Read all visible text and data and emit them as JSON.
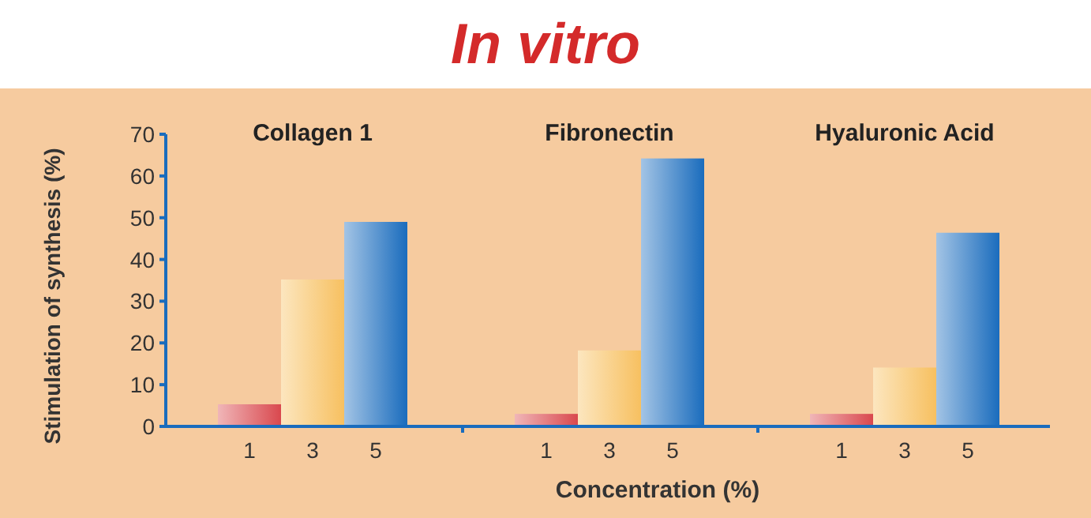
{
  "chart_data": [
    {
      "type": "bar",
      "title": "Collagen 1",
      "annotations": [
        "In vitro"
      ],
      "ylabel": "Stimulation of synthesis  (%)",
      "categories": [
        "1",
        "3",
        "5"
      ],
      "values": [
        5.3,
        35.2,
        49
      ],
      "colors": [
        "#d9484e",
        "#f7c060",
        "#1a6cbd"
      ],
      "ylim": [
        0,
        70
      ],
      "yticks": [
        0,
        10,
        20,
        30,
        40,
        50,
        60,
        70
      ],
      "grid": false
    },
    {
      "type": "bar",
      "title": "Fibronectin",
      "xlabel": "Concentration (%)",
      "categories": [
        "1",
        "3",
        "5"
      ],
      "values": [
        3,
        18.2,
        64.2
      ],
      "colors": [
        "#d9484e",
        "#f7c060",
        "#1a6cbd"
      ],
      "ylim": [
        0,
        70
      ],
      "tick_labels": "x",
      "grid": false
    },
    {
      "type": "bar",
      "title": "Hyaluronic Acid",
      "categories": [
        "1",
        "3",
        "5"
      ],
      "values": [
        3,
        14.1,
        46.4
      ],
      "colors": [
        "#d9484e",
        "#f7c060",
        "#1a6cbd"
      ],
      "ylim": [
        0,
        70
      ],
      "tick_labels": "x",
      "grid": false
    }
  ]
}
